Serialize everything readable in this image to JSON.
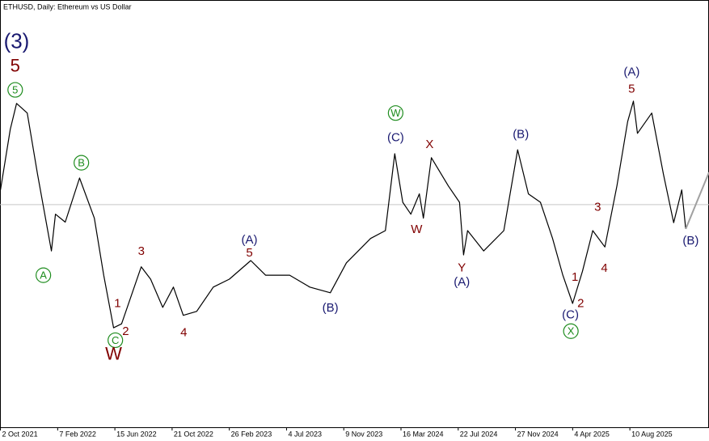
{
  "chart_data": {
    "type": "line",
    "title": "ETHUSD, Daily:  Ethereum vs US Dollar",
    "xlim": [
      "2021-10-01",
      "2026-02-03"
    ],
    "ylim": [
      -880,
      6680
    ],
    "xticks": [
      {
        "value": "2021-10-02",
        "label": "2 Oct 2021"
      },
      {
        "value": "2022-02-07",
        "label": "7 Feb 2022"
      },
      {
        "value": "2022-06-15",
        "label": "15 Jun 2022"
      },
      {
        "value": "2022-10-21",
        "label": "21 Oct 2022"
      },
      {
        "value": "2023-02-26",
        "label": "26 Feb 2023"
      },
      {
        "value": "2023-07-04",
        "label": "4 Jul 2023"
      },
      {
        "value": "2023-11-09",
        "label": "9 Nov 2023"
      },
      {
        "value": "2024-03-16",
        "label": "16 Mar 2024"
      },
      {
        "value": "2024-07-22",
        "label": "22 Jul 2024"
      },
      {
        "value": "2024-11-27",
        "label": "27 Nov 2024"
      },
      {
        "value": "2025-04-04",
        "label": "4 Apr 2025"
      },
      {
        "value": "2025-08-10",
        "label": "10 Aug 2025"
      }
    ],
    "price_line": {
      "value": 3060,
      "color": "#c8c8c8"
    },
    "series": [
      {
        "color": "#000000",
        "x": [
          "2021-10-02",
          "2021-10-24",
          "2021-11-07",
          "2021-12-01",
          "2021-12-24",
          "2022-01-24",
          "2022-02-02",
          "2022-02-24",
          "2022-03-28",
          "2022-04-30",
          "2022-05-21",
          "2022-06-12",
          "2022-06-30",
          "2022-08-13",
          "2022-09-03",
          "2022-09-30",
          "2022-10-24",
          "2022-11-15",
          "2022-12-15",
          "2023-01-21",
          "2023-02-26",
          "2023-04-15",
          "2023-05-18",
          "2023-07-11",
          "2023-08-25",
          "2023-10-10",
          "2023-11-15",
          "2024-01-08",
          "2024-02-10",
          "2024-03-02",
          "2024-03-20",
          "2024-04-07",
          "2024-04-26",
          "2024-05-05",
          "2024-05-23",
          "2024-06-30",
          "2024-07-25",
          "2024-08-03",
          "2024-08-12",
          "2024-09-17",
          "2024-11-01",
          "2024-12-02",
          "2024-12-26",
          "2025-01-22",
          "2025-02-18",
          "2025-03-13",
          "2025-04-04",
          "2025-04-26",
          "2025-05-19",
          "2025-06-15",
          "2025-07-12",
          "2025-08-05",
          "2025-08-18",
          "2025-08-27",
          "2025-09-28",
          "2025-10-24",
          "2025-11-16",
          "2025-12-04",
          "2025-12-13"
        ],
        "values": [
          3320,
          4390,
          4850,
          4680,
          3600,
          2240,
          2890,
          2750,
          3530,
          2820,
          1810,
          880,
          950,
          1960,
          1740,
          1240,
          1600,
          1100,
          1170,
          1600,
          1740,
          2070,
          1810,
          1810,
          1600,
          1500,
          2030,
          2460,
          2600,
          3960,
          3100,
          2890,
          3250,
          2820,
          3890,
          3390,
          3100,
          2170,
          2600,
          2240,
          2600,
          4030,
          3250,
          3100,
          2460,
          1810,
          1310,
          1880,
          2600,
          2310,
          3390,
          4530,
          4890,
          4320,
          4680,
          3600,
          2740,
          3320,
          2630
        ]
      }
    ],
    "projection": {
      "color": "#a0a0a0",
      "x": [
        "2025-12-13",
        "2026-02-03"
      ],
      "values": [
        2630,
        3630
      ]
    },
    "annotations": [
      {
        "text": "(3)",
        "date": "2021-11-07",
        "price": 5940,
        "color": "#191970",
        "emphasis": true
      },
      {
        "text": "5",
        "date": "2021-11-04",
        "price": 5510,
        "color": "#800000",
        "emphasis": true
      },
      {
        "text": "5",
        "date": "2021-11-04",
        "price": 5090,
        "color": "#1e8c1e",
        "circled": true
      },
      {
        "text": "B",
        "date": "2022-04-01",
        "price": 3800,
        "color": "#1e8c1e",
        "circled": true
      },
      {
        "text": "A",
        "date": "2022-01-06",
        "price": 1810,
        "color": "#1e8c1e",
        "circled": true
      },
      {
        "text": "3",
        "date": "2022-08-13",
        "price": 2240,
        "color": "#800000"
      },
      {
        "text": "1",
        "date": "2022-06-21",
        "price": 1320,
        "color": "#800000"
      },
      {
        "text": "2",
        "date": "2022-07-09",
        "price": 820,
        "color": "#800000"
      },
      {
        "text": "C",
        "date": "2022-06-16",
        "price": 660,
        "color": "#1e8c1e",
        "circled": true
      },
      {
        "text": "W",
        "date": "2022-06-12",
        "price": 410,
        "color": "#800000",
        "emphasis": true
      },
      {
        "text": "4",
        "date": "2022-11-16",
        "price": 800,
        "color": "#800000"
      },
      {
        "text": "(A)",
        "date": "2023-04-12",
        "price": 2440,
        "color": "#191970"
      },
      {
        "text": "5",
        "date": "2023-04-12",
        "price": 2210,
        "color": "#800000"
      },
      {
        "text": "(B)",
        "date": "2023-10-10",
        "price": 1240,
        "color": "#191970"
      },
      {
        "text": "(C)",
        "date": "2024-03-04",
        "price": 4250,
        "color": "#191970"
      },
      {
        "text": "W",
        "date": "2024-03-04",
        "price": 4680,
        "color": "#1e8c1e",
        "circled": true
      },
      {
        "text": "X",
        "date": "2024-05-19",
        "price": 4130,
        "color": "#800000"
      },
      {
        "text": "W",
        "date": "2024-04-20",
        "price": 2630,
        "color": "#800000"
      },
      {
        "text": "Y",
        "date": "2024-07-30",
        "price": 1950,
        "color": "#800000"
      },
      {
        "text": "(A)",
        "date": "2024-07-30",
        "price": 1700,
        "color": "#191970"
      },
      {
        "text": "(B)",
        "date": "2024-12-09",
        "price": 4310,
        "color": "#191970"
      },
      {
        "text": "1",
        "date": "2025-04-09",
        "price": 1780,
        "color": "#800000"
      },
      {
        "text": "2",
        "date": "2025-04-22",
        "price": 1320,
        "color": "#800000"
      },
      {
        "text": "(C)",
        "date": "2025-03-30",
        "price": 1120,
        "color": "#191970"
      },
      {
        "text": "X",
        "date": "2025-03-31",
        "price": 820,
        "color": "#1e8c1e",
        "circled": true
      },
      {
        "text": "3",
        "date": "2025-05-30",
        "price": 3020,
        "color": "#800000"
      },
      {
        "text": "4",
        "date": "2025-06-14",
        "price": 1940,
        "color": "#800000"
      },
      {
        "text": "(A)",
        "date": "2025-08-14",
        "price": 5410,
        "color": "#191970"
      },
      {
        "text": "5",
        "date": "2025-08-14",
        "price": 5110,
        "color": "#800000"
      },
      {
        "text": "(B)",
        "date": "2025-12-24",
        "price": 2430,
        "color": "#191970"
      }
    ]
  }
}
